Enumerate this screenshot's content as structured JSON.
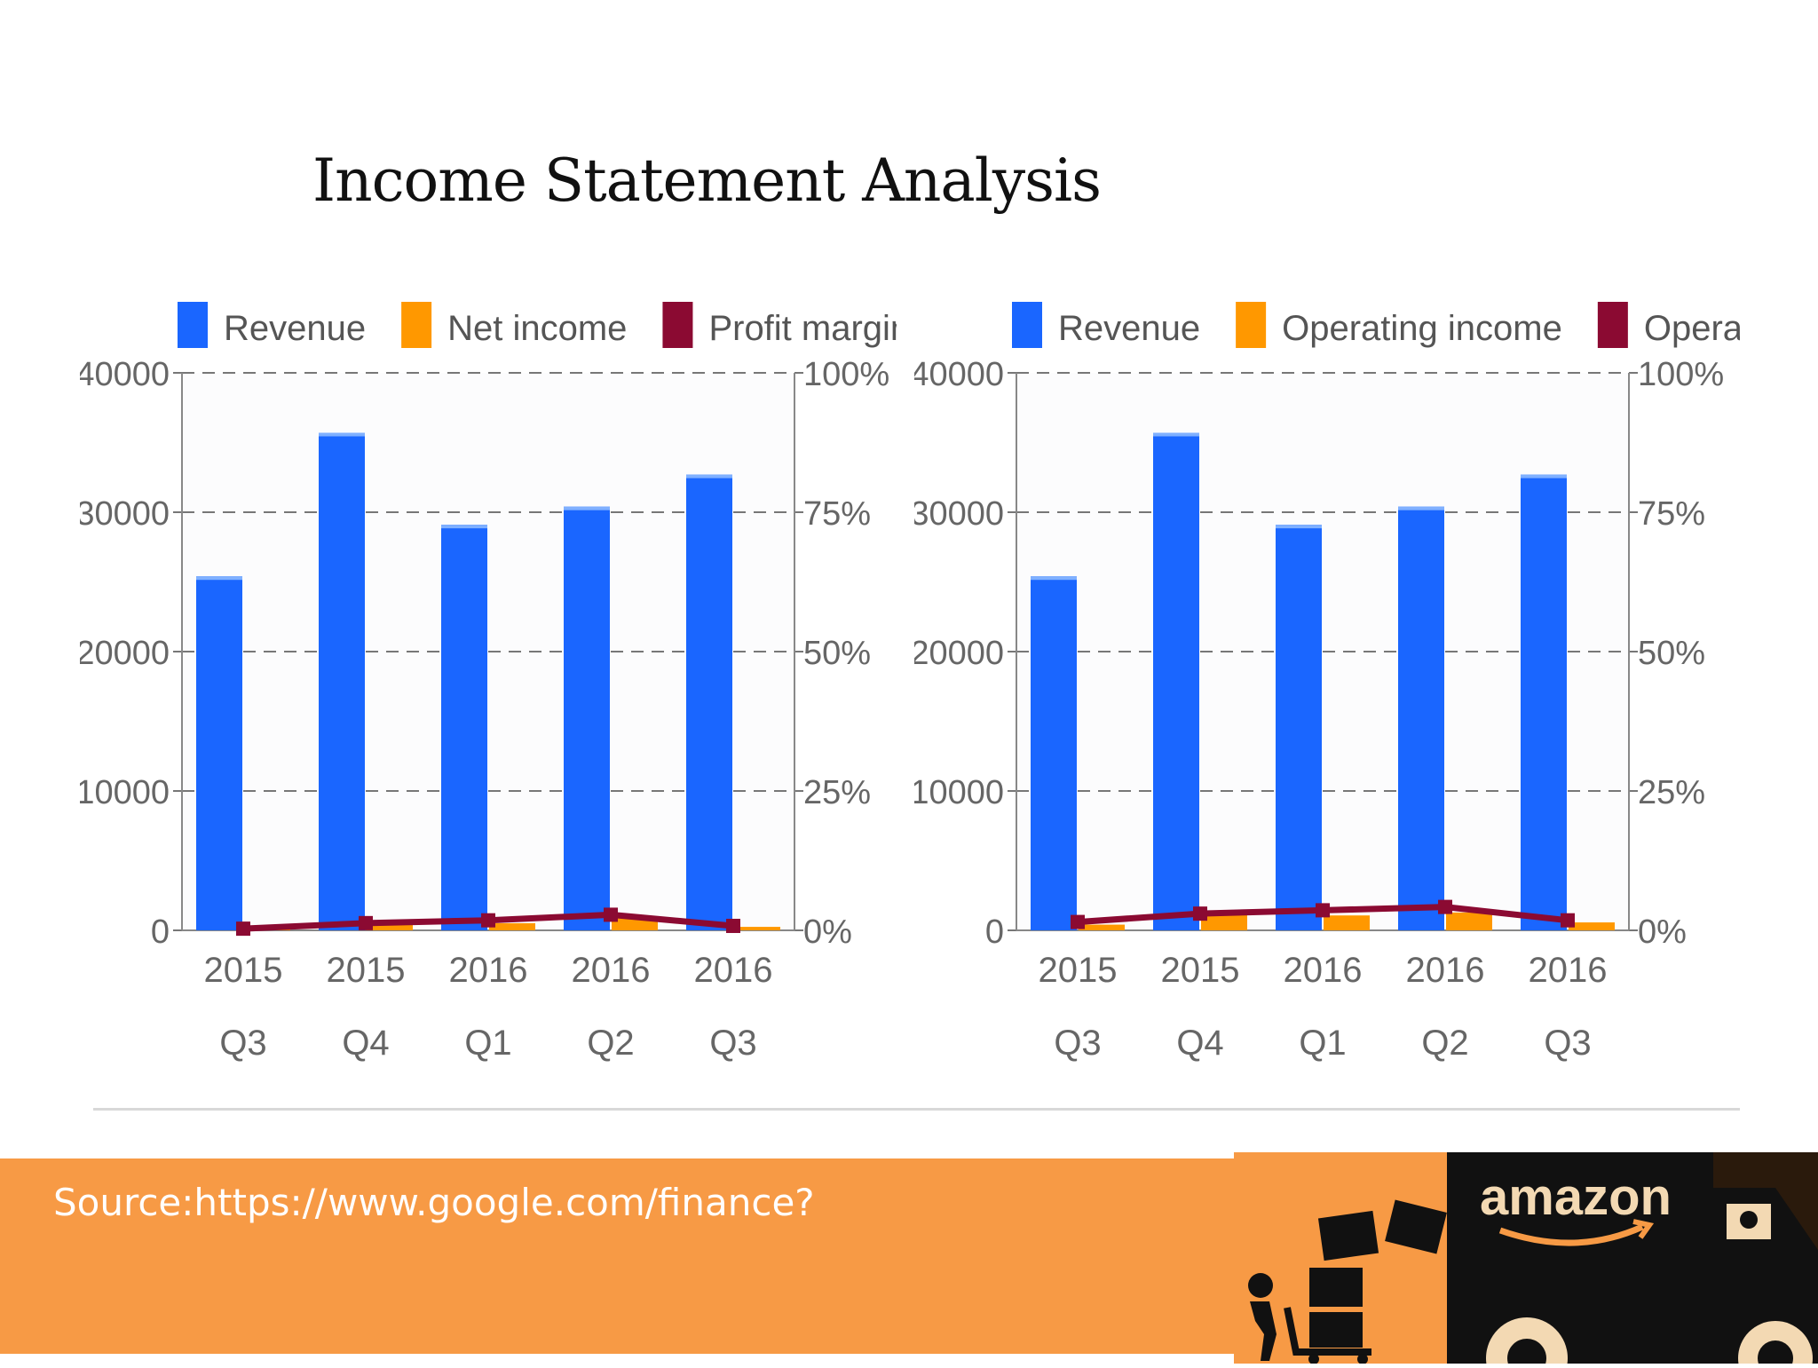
{
  "slide": {
    "title": "Income Statement Analysis",
    "source": "Source:https://www.google.com/finance?"
  },
  "logo": {
    "text": "amazon"
  },
  "colors": {
    "revenue": "#1a66ff",
    "income": "#ff9800",
    "margin": "#8b0a32",
    "footer": "#f79a45"
  },
  "chart_data": [
    {
      "type": "bar",
      "categories": [
        [
          "2015",
          "Q3"
        ],
        [
          "2015",
          "Q4"
        ],
        [
          "2016",
          "Q1"
        ],
        [
          "2016",
          "Q2"
        ],
        [
          "2016",
          "Q3"
        ]
      ],
      "series": [
        {
          "name": "Revenue",
          "kind": "bar",
          "axis": "left",
          "values": [
            25400,
            35700,
            29100,
            30400,
            32700
          ]
        },
        {
          "name": "Net income",
          "kind": "bar",
          "axis": "left",
          "values": [
            80,
            480,
            510,
            860,
            250
          ]
        },
        {
          "name": "Profit margin (%)",
          "kind": "line",
          "axis": "right",
          "values": [
            0.3,
            1.3,
            1.8,
            2.8,
            0.8
          ]
        }
      ],
      "y_left_ticks": [
        "0",
        "10000",
        "20000",
        "30000",
        "40000"
      ],
      "y_right_ticks": [
        "0%",
        "25%",
        "50%",
        "75%",
        "100%"
      ],
      "ylim": [
        0,
        40000
      ],
      "y2lim": [
        0,
        100
      ],
      "grid": true,
      "legend": "top"
    },
    {
      "type": "bar",
      "categories": [
        [
          "2015",
          "Q3"
        ],
        [
          "2015",
          "Q4"
        ],
        [
          "2016",
          "Q1"
        ],
        [
          "2016",
          "Q2"
        ],
        [
          "2016",
          "Q3"
        ]
      ],
      "series": [
        {
          "name": "Revenue",
          "kind": "bar",
          "axis": "left",
          "values": [
            25400,
            35700,
            29100,
            30400,
            32700
          ]
        },
        {
          "name": "Operating income",
          "kind": "bar",
          "axis": "left",
          "values": [
            410,
            1100,
            1070,
            1280,
            570
          ]
        },
        {
          "name": "Operating margin (%)",
          "kind": "line",
          "axis": "right",
          "values": [
            1.5,
            3.0,
            3.6,
            4.2,
            1.8
          ]
        }
      ],
      "y_left_ticks": [
        "0",
        "10000",
        "20000",
        "30000",
        "40000"
      ],
      "y_right_ticks": [
        "0%",
        "25%",
        "50%",
        "75%",
        "100%"
      ],
      "ylim": [
        0,
        40000
      ],
      "y2lim": [
        0,
        100
      ],
      "grid": true,
      "legend": "top"
    }
  ]
}
